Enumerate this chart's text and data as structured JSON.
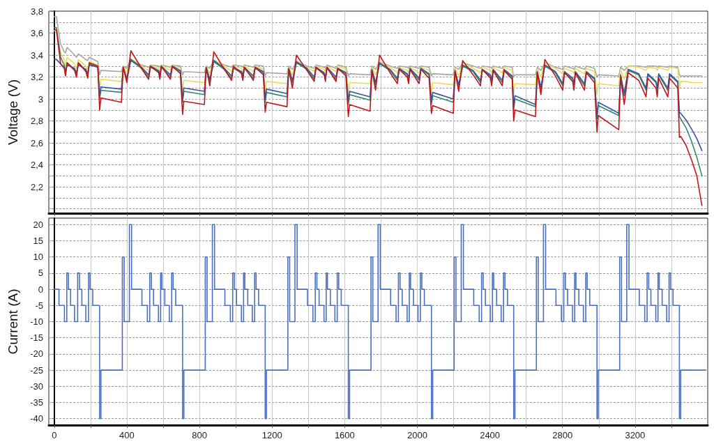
{
  "chart_data": [
    {
      "type": "line",
      "ylabel": "Voltage (V)",
      "grid": true,
      "tick_labels": "y",
      "xlim": [
        -30,
        3600
      ],
      "xticks": [
        {
          "value": 0,
          "label": null
        },
        {
          "value": 200,
          "label": null
        },
        {
          "value": 400,
          "label": null
        },
        {
          "value": 600,
          "label": null
        },
        {
          "value": 800,
          "label": null
        },
        {
          "value": 1000,
          "label": null
        },
        {
          "value": 1200,
          "label": null
        },
        {
          "value": 1400,
          "label": null
        },
        {
          "value": 1600,
          "label": null
        },
        {
          "value": 1800,
          "label": null
        },
        {
          "value": 2000,
          "label": null
        },
        {
          "value": 2200,
          "label": null
        },
        {
          "value": 2400,
          "label": null
        },
        {
          "value": 2600,
          "label": null
        },
        {
          "value": 2800,
          "label": null
        },
        {
          "value": 3000,
          "label": null
        },
        {
          "value": 3200,
          "label": null
        },
        {
          "value": 3400,
          "label": null
        }
      ],
      "ylim": [
        1.96,
        3.8
      ],
      "yticks": [
        {
          "value": 2.0,
          "label": null
        },
        {
          "value": 2.1,
          "label": null
        },
        {
          "value": 2.2,
          "label": "2,2"
        },
        {
          "value": 2.3,
          "label": null
        },
        {
          "value": 2.4,
          "label": "2,4"
        },
        {
          "value": 2.5,
          "label": null
        },
        {
          "value": 2.6,
          "label": "2,6"
        },
        {
          "value": 2.7,
          "label": null
        },
        {
          "value": 2.8,
          "label": "2,8"
        },
        {
          "value": 2.9,
          "label": null
        },
        3,
        {
          "value": 3.1,
          "label": null
        },
        {
          "value": 3.2,
          "label": "3,2"
        },
        {
          "value": 3.3,
          "label": null
        },
        {
          "value": 3.4,
          "label": "3,4"
        },
        {
          "value": 3.5,
          "label": null
        },
        {
          "value": 3.6,
          "label": "3,6"
        },
        {
          "value": 3.7,
          "label": null
        },
        {
          "value": 3.8,
          "label": "3,8"
        }
      ],
      "x": [
        0,
        12,
        35,
        55,
        62,
        71,
        112,
        122,
        133,
        174,
        184,
        193,
        240,
        250,
        257,
        370,
        380,
        400,
        422,
        480,
        520,
        530,
        575,
        582,
        590,
        640,
        650,
        695,
        707,
        714,
        827,
        837,
        857,
        879,
        937,
        977,
        987,
        1032,
        1039,
        1047,
        1097,
        1107,
        1152,
        1162,
        1169,
        1282,
        1292,
        1312,
        1334,
        1392,
        1432,
        1442,
        1487,
        1494,
        1502,
        1552,
        1562,
        1607,
        1620,
        1627,
        1740,
        1750,
        1770,
        1792,
        1850,
        1890,
        1900,
        1945,
        1952,
        1960,
        2010,
        2020,
        2065,
        2078,
        2085,
        2198,
        2208,
        2228,
        2250,
        2308,
        2348,
        2358,
        2403,
        2410,
        2418,
        2468,
        2478,
        2523,
        2531,
        2538,
        2651,
        2661,
        2681,
        2703,
        2761,
        2801,
        2811,
        2856,
        2863,
        2871,
        2921,
        2931,
        2976,
        2990,
        2997,
        3110,
        3120,
        3140,
        3162,
        3220,
        3260,
        3270,
        3315,
        3322,
        3330,
        3380,
        3390,
        3435,
        3444,
        3451,
        3480,
        3510,
        3540,
        3568
      ],
      "series": [
        {
          "color": "#a6a6a6",
          "values": [
            3.75,
            3.75,
            3.5,
            3.43,
            3.42,
            3.47,
            3.4,
            3.38,
            3.41,
            3.36,
            3.35,
            3.38,
            3.34,
            3.22,
            3.26,
            3.25,
            3.3,
            3.28,
            3.36,
            3.31,
            3.29,
            3.31,
            3.3,
            3.29,
            3.31,
            3.29,
            3.31,
            3.3,
            3.22,
            3.25,
            3.24,
            3.3,
            3.28,
            3.35,
            3.31,
            3.29,
            3.31,
            3.3,
            3.29,
            3.31,
            3.29,
            3.31,
            3.3,
            3.21,
            3.24,
            3.23,
            3.3,
            3.27,
            3.34,
            3.3,
            3.28,
            3.31,
            3.29,
            3.28,
            3.31,
            3.28,
            3.31,
            3.29,
            3.21,
            3.23,
            3.22,
            3.3,
            3.27,
            3.34,
            3.3,
            3.28,
            3.3,
            3.29,
            3.28,
            3.3,
            3.28,
            3.3,
            3.29,
            3.21,
            3.23,
            3.22,
            3.29,
            3.27,
            3.33,
            3.3,
            3.28,
            3.3,
            3.29,
            3.28,
            3.3,
            3.28,
            3.3,
            3.29,
            3.2,
            3.22,
            3.22,
            3.29,
            3.26,
            3.33,
            3.29,
            3.27,
            3.3,
            3.28,
            3.27,
            3.3,
            3.27,
            3.3,
            3.28,
            3.2,
            3.22,
            3.21,
            3.29,
            3.26,
            3.3,
            3.3,
            3.29,
            3.3,
            3.3,
            3.29,
            3.3,
            3.29,
            3.3,
            3.29,
            3.22,
            3.21,
            3.21,
            3.21,
            3.21,
            3.21
          ]
        },
        {
          "color": "#ecd95a",
          "values": [
            3.62,
            3.62,
            3.42,
            3.36,
            3.3,
            3.38,
            3.32,
            3.28,
            3.36,
            3.3,
            3.26,
            3.34,
            3.31,
            3.09,
            3.18,
            3.16,
            3.3,
            3.24,
            3.37,
            3.3,
            3.26,
            3.31,
            3.28,
            3.26,
            3.31,
            3.26,
            3.31,
            3.28,
            3.08,
            3.17,
            3.15,
            3.3,
            3.23,
            3.36,
            3.3,
            3.25,
            3.3,
            3.28,
            3.25,
            3.3,
            3.25,
            3.3,
            3.27,
            3.07,
            3.16,
            3.14,
            3.29,
            3.22,
            3.35,
            3.29,
            3.25,
            3.3,
            3.27,
            3.25,
            3.3,
            3.25,
            3.3,
            3.27,
            3.06,
            3.15,
            3.14,
            3.29,
            3.22,
            3.34,
            3.29,
            3.24,
            3.29,
            3.26,
            3.24,
            3.29,
            3.24,
            3.29,
            3.26,
            3.06,
            3.15,
            3.13,
            3.28,
            3.21,
            3.33,
            3.28,
            3.24,
            3.29,
            3.26,
            3.24,
            3.29,
            3.24,
            3.29,
            3.26,
            3.05,
            3.14,
            3.13,
            3.28,
            3.2,
            3.33,
            3.28,
            3.23,
            3.28,
            3.25,
            3.23,
            3.28,
            3.23,
            3.28,
            3.25,
            3.04,
            3.14,
            3.12,
            3.27,
            3.18,
            3.3,
            3.29,
            3.26,
            3.29,
            3.28,
            3.26,
            3.29,
            3.26,
            3.29,
            3.28,
            3.1,
            3.16,
            3.16,
            3.15,
            3.15,
            3.15
          ]
        },
        {
          "color": "#2a8a6a",
          "values": [
            3.65,
            3.65,
            3.38,
            3.31,
            3.24,
            3.33,
            3.27,
            3.22,
            3.33,
            3.26,
            3.21,
            3.32,
            3.29,
            3.0,
            3.08,
            3.06,
            3.28,
            3.17,
            3.35,
            3.28,
            3.2,
            3.29,
            3.25,
            3.2,
            3.29,
            3.2,
            3.29,
            3.25,
            2.97,
            3.07,
            3.04,
            3.28,
            3.16,
            3.34,
            3.27,
            3.19,
            3.28,
            3.24,
            3.19,
            3.28,
            3.19,
            3.28,
            3.24,
            2.97,
            3.06,
            3.02,
            3.27,
            3.15,
            3.33,
            3.27,
            3.18,
            3.28,
            3.23,
            3.18,
            3.28,
            3.18,
            3.27,
            3.23,
            2.95,
            3.04,
            2.99,
            3.26,
            3.13,
            3.32,
            3.26,
            3.17,
            3.27,
            3.22,
            3.17,
            3.27,
            3.17,
            3.27,
            3.22,
            2.95,
            3.03,
            2.97,
            3.25,
            3.11,
            3.3,
            3.25,
            3.15,
            3.26,
            3.21,
            3.15,
            3.26,
            3.15,
            3.26,
            3.2,
            2.9,
            3.0,
            2.93,
            3.24,
            3.09,
            3.3,
            3.24,
            3.12,
            3.24,
            3.18,
            3.12,
            3.24,
            3.12,
            3.24,
            3.18,
            2.82,
            2.94,
            2.85,
            3.21,
            3.03,
            3.26,
            3.22,
            3.08,
            3.22,
            3.15,
            3.08,
            3.22,
            3.08,
            3.22,
            3.15,
            2.84,
            2.82,
            2.74,
            2.62,
            2.47,
            2.3
          ]
        },
        {
          "color": "#3a55a0",
          "values": [
            3.36,
            3.36,
            3.32,
            3.29,
            3.25,
            3.31,
            3.28,
            3.24,
            3.31,
            3.27,
            3.23,
            3.31,
            3.29,
            3.03,
            3.11,
            3.09,
            3.29,
            3.19,
            3.36,
            3.29,
            3.22,
            3.3,
            3.26,
            3.22,
            3.3,
            3.22,
            3.3,
            3.26,
            3.0,
            3.1,
            3.07,
            3.29,
            3.18,
            3.35,
            3.28,
            3.21,
            3.29,
            3.25,
            3.21,
            3.29,
            3.21,
            3.29,
            3.25,
            3.0,
            3.09,
            3.05,
            3.28,
            3.17,
            3.34,
            3.28,
            3.2,
            3.29,
            3.24,
            3.2,
            3.29,
            3.2,
            3.28,
            3.24,
            2.98,
            3.07,
            3.02,
            3.27,
            3.15,
            3.33,
            3.27,
            3.19,
            3.28,
            3.23,
            3.19,
            3.28,
            3.19,
            3.28,
            3.23,
            2.98,
            3.06,
            3.0,
            3.26,
            3.13,
            3.31,
            3.26,
            3.17,
            3.27,
            3.22,
            3.17,
            3.27,
            3.17,
            3.27,
            3.21,
            2.93,
            3.03,
            2.95,
            3.25,
            3.11,
            3.31,
            3.25,
            3.14,
            3.25,
            3.19,
            3.14,
            3.25,
            3.14,
            3.25,
            3.19,
            2.85,
            2.97,
            2.87,
            3.22,
            3.05,
            3.27,
            3.23,
            3.1,
            3.23,
            3.16,
            3.1,
            3.23,
            3.1,
            3.23,
            3.16,
            2.88,
            2.87,
            2.81,
            2.73,
            2.64,
            2.53
          ]
        },
        {
          "color": "#c0161b",
          "values": [
            3.63,
            3.63,
            3.32,
            3.28,
            3.21,
            3.33,
            3.26,
            3.2,
            3.33,
            3.25,
            3.19,
            3.33,
            3.3,
            2.9,
            3.01,
            2.97,
            3.29,
            3.15,
            3.44,
            3.28,
            3.18,
            3.3,
            3.24,
            3.18,
            3.3,
            3.18,
            3.3,
            3.23,
            2.86,
            2.98,
            2.95,
            3.28,
            3.12,
            3.43,
            3.27,
            3.17,
            3.3,
            3.23,
            3.17,
            3.29,
            3.17,
            3.29,
            3.22,
            2.88,
            2.97,
            2.93,
            3.27,
            3.1,
            3.4,
            3.26,
            3.16,
            3.29,
            3.22,
            3.16,
            3.29,
            3.16,
            3.28,
            3.21,
            2.84,
            2.95,
            2.89,
            3.26,
            3.08,
            3.4,
            3.24,
            3.14,
            3.27,
            3.2,
            3.14,
            3.27,
            3.14,
            3.27,
            3.19,
            2.87,
            2.94,
            2.87,
            3.25,
            3.07,
            3.35,
            3.22,
            3.12,
            3.27,
            3.19,
            3.12,
            3.26,
            3.12,
            3.26,
            3.18,
            2.8,
            2.9,
            2.84,
            3.24,
            3.04,
            3.36,
            3.21,
            3.08,
            3.24,
            3.16,
            3.08,
            3.24,
            3.08,
            3.24,
            3.15,
            2.7,
            2.85,
            2.72,
            3.2,
            2.95,
            3.24,
            3.17,
            3.02,
            3.19,
            3.1,
            3.02,
            3.19,
            3.02,
            3.19,
            3.1,
            2.65,
            2.66,
            2.58,
            2.45,
            2.3,
            2.03
          ]
        }
      ]
    },
    {
      "type": "step",
      "ylabel": "Current (A)",
      "grid": true,
      "color": "#4a6fbf",
      "xlim": [
        -30,
        3600
      ],
      "xticks": [
        {
          "value": 0,
          "label": "0"
        },
        {
          "value": 200,
          "label": null
        },
        {
          "value": 400,
          "label": "400"
        },
        {
          "value": 600,
          "label": null
        },
        {
          "value": 800,
          "label": "800"
        },
        {
          "value": 1000,
          "label": null
        },
        {
          "value": 1200,
          "label": "1200"
        },
        {
          "value": 1400,
          "label": null
        },
        {
          "value": 1600,
          "label": "1600"
        },
        {
          "value": 1800,
          "label": null
        },
        {
          "value": 2000,
          "label": "2000"
        },
        {
          "value": 2200,
          "label": null
        },
        {
          "value": 2400,
          "label": "2400"
        },
        {
          "value": 2600,
          "label": null
        },
        {
          "value": 2800,
          "label": "2800"
        },
        {
          "value": 3000,
          "label": null
        },
        {
          "value": 3200,
          "label": "3200"
        },
        {
          "value": 3400,
          "label": null
        }
      ],
      "ylim": [
        -42,
        22
      ],
      "yticks": [
        -40,
        -35,
        -30,
        -25,
        -20,
        -15,
        -10,
        -5,
        0,
        5,
        10,
        15,
        20
      ],
      "x": [
        1,
        26,
        56,
        69,
        78,
        90,
        112,
        129,
        139,
        152,
        174,
        189,
        197,
        212,
        250,
        257,
        375,
        385,
        414,
        426,
        483,
        513,
        526,
        535,
        547,
        574,
        586,
        593,
        609,
        634,
        647,
        655,
        669,
        707,
        714,
        832,
        842,
        871,
        883,
        940,
        970,
        983,
        992,
        1004,
        1031,
        1043,
        1050,
        1066,
        1091,
        1104,
        1112,
        1126,
        1162,
        1169,
        1287,
        1297,
        1326,
        1338,
        1395,
        1425,
        1438,
        1447,
        1459,
        1486,
        1498,
        1505,
        1521,
        1546,
        1559,
        1567,
        1581,
        1620,
        1627,
        1745,
        1755,
        1784,
        1796,
        1853,
        1883,
        1896,
        1905,
        1917,
        1944,
        1956,
        1963,
        1979,
        2004,
        2017,
        2025,
        2039,
        2078,
        2085,
        2203,
        2213,
        2242,
        2254,
        2311,
        2341,
        2354,
        2363,
        2375,
        2402,
        2414,
        2421,
        2437,
        2462,
        2475,
        2483,
        2497,
        2531,
        2538,
        2656,
        2666,
        2695,
        2707,
        2764,
        2794,
        2807,
        2816,
        2828,
        2855,
        2867,
        2874,
        2890,
        2915,
        2928,
        2936,
        2950,
        2990,
        2997,
        3115,
        3125,
        3154,
        3166,
        3223,
        3253,
        3266,
        3275,
        3287,
        3314,
        3326,
        3333,
        3349,
        3374,
        3387,
        3395,
        3409,
        3444,
        3451,
        3590
      ],
      "values": [
        0,
        -5,
        -10,
        5,
        0,
        -5,
        -10,
        5,
        0,
        -5,
        -10,
        5,
        0,
        -5,
        -40,
        -25,
        10,
        -10,
        20,
        0,
        -5,
        -10,
        5,
        0,
        -5,
        -10,
        5,
        0,
        -5,
        -10,
        5,
        0,
        -5,
        -40,
        -25,
        10,
        -10,
        20,
        0,
        -5,
        -10,
        5,
        0,
        -5,
        -10,
        5,
        0,
        -5,
        -10,
        5,
        0,
        -5,
        -40,
        -25,
        10,
        -10,
        20,
        0,
        -5,
        -10,
        5,
        0,
        -5,
        -10,
        5,
        0,
        -5,
        -10,
        5,
        0,
        -5,
        -40,
        -25,
        10,
        -10,
        20,
        0,
        -5,
        -10,
        5,
        0,
        -5,
        -10,
        5,
        0,
        -5,
        -10,
        5,
        0,
        -5,
        -40,
        -25,
        10,
        -10,
        20,
        0,
        -5,
        -10,
        5,
        0,
        -5,
        -10,
        5,
        0,
        -5,
        -10,
        5,
        0,
        -5,
        -40,
        -25,
        10,
        -10,
        20,
        0,
        -5,
        -10,
        5,
        0,
        -5,
        -10,
        5,
        0,
        -5,
        -10,
        5,
        0,
        -5,
        -40,
        -25,
        10,
        -10,
        20,
        0,
        -5,
        -10,
        5,
        0,
        -5,
        -10,
        5,
        0,
        -5,
        -10,
        5,
        0,
        -5,
        -40,
        -25,
        -25
      ]
    }
  ]
}
